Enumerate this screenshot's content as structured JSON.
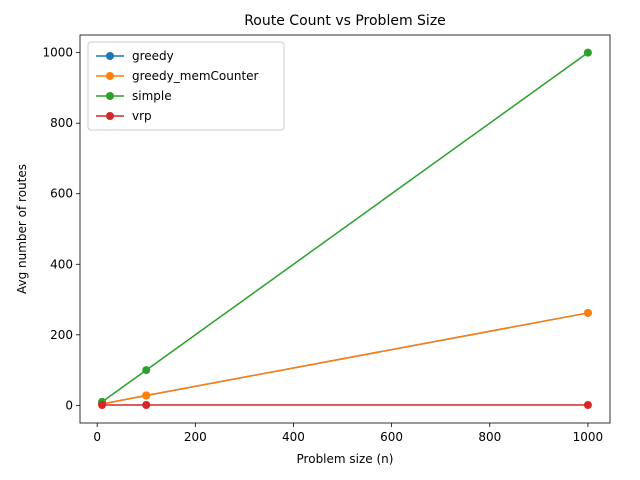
{
  "chart_data": {
    "type": "line",
    "title": "Route Count vs Problem Size",
    "xlabel": "Problem size (n)",
    "ylabel": "Avg number of routes",
    "x": [
      10,
      100,
      1000
    ],
    "xlim": [
      -35,
      1045
    ],
    "ylim": [
      -50,
      1050
    ],
    "xticks": [
      0,
      200,
      400,
      600,
      800,
      1000
    ],
    "yticks": [
      0,
      200,
      400,
      600,
      800,
      1000
    ],
    "grid": false,
    "legend": "top-left",
    "series": [
      {
        "name": "greedy",
        "color": "#1f77b4",
        "values": [
          4,
          28,
          262
        ]
      },
      {
        "name": "greedy_memCounter",
        "color": "#ff7f0e",
        "values": [
          4,
          28,
          262
        ]
      },
      {
        "name": "simple",
        "color": "#2ca02c",
        "values": [
          10,
          100,
          1000
        ]
      },
      {
        "name": "vrp",
        "color": "#d62728",
        "values": [
          1,
          1,
          1
        ]
      }
    ]
  }
}
